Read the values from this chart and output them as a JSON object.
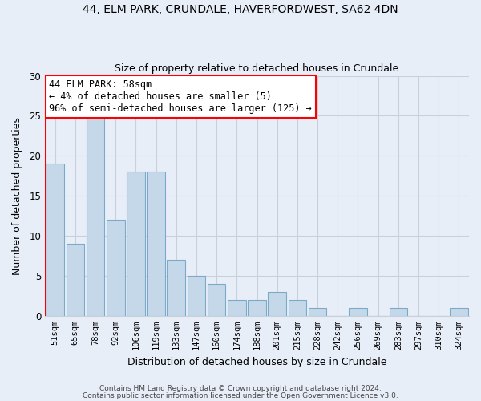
{
  "title1": "44, ELM PARK, CRUNDALE, HAVERFORDWEST, SA62 4DN",
  "title2": "Size of property relative to detached houses in Crundale",
  "xlabel": "Distribution of detached houses by size in Crundale",
  "ylabel": "Number of detached properties",
  "bar_labels": [
    "51sqm",
    "65sqm",
    "78sqm",
    "92sqm",
    "106sqm",
    "119sqm",
    "133sqm",
    "147sqm",
    "160sqm",
    "174sqm",
    "188sqm",
    "201sqm",
    "215sqm",
    "228sqm",
    "242sqm",
    "256sqm",
    "269sqm",
    "283sqm",
    "297sqm",
    "310sqm",
    "324sqm"
  ],
  "bar_values": [
    19,
    9,
    25,
    12,
    18,
    18,
    7,
    5,
    4,
    2,
    2,
    3,
    2,
    1,
    0,
    1,
    0,
    1,
    0,
    0,
    1
  ],
  "bar_color": "#c5d8ea",
  "bar_edge_color": "#7aaac8",
  "annotation_text": "44 ELM PARK: 58sqm\n← 4% of detached houses are smaller (5)\n96% of semi-detached houses are larger (125) →",
  "red_bar_index": 0,
  "ylim": [
    0,
    30
  ],
  "yticks": [
    0,
    5,
    10,
    15,
    20,
    25,
    30
  ],
  "footer1": "Contains HM Land Registry data © Crown copyright and database right 2024.",
  "footer2": "Contains public sector information licensed under the Open Government Licence v3.0.",
  "background_color": "#e8eef8",
  "grid_color": "#c8d0dc"
}
